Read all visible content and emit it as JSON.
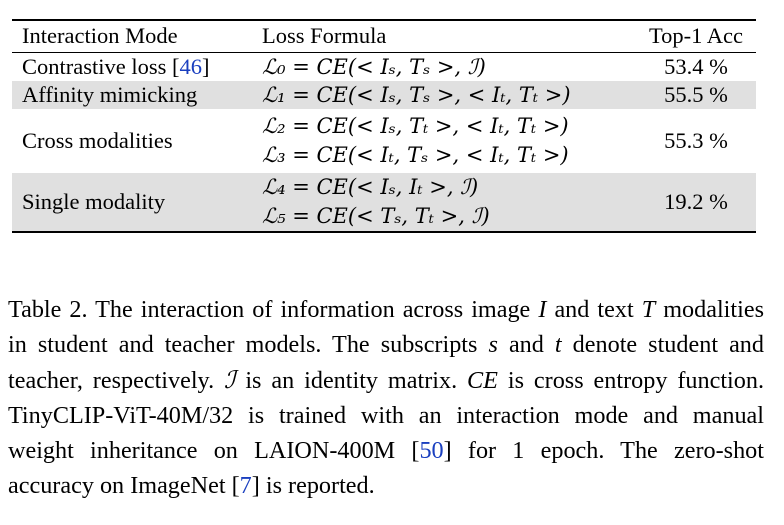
{
  "table": {
    "headers": {
      "mode": "Interaction Mode",
      "formula": "Loss Formula",
      "acc": "Top-1 Acc"
    },
    "rows": [
      {
        "mode": "Contrastive loss",
        "mode_cite": "46",
        "formulas": [
          "ℒ₀ = CE(< Iₛ, Tₛ >, ℐ)"
        ],
        "acc": "53.4 %"
      },
      {
        "mode": "Affinity mimicking",
        "formulas": [
          "ℒ₁ = CE(< Iₛ, Tₛ >, < Iₜ, Tₜ >)"
        ],
        "acc": "55.5 %"
      },
      {
        "mode": "Cross modalities",
        "formulas": [
          "ℒ₂ = CE(< Iₛ, Tₜ >, < Iₜ, Tₜ >)",
          "ℒ₃ = CE(< Iₜ, Tₛ >, < Iₜ, Tₜ >)"
        ],
        "acc": "55.3 %"
      },
      {
        "mode": "Single modality",
        "formulas": [
          "ℒ₄ = CE(< Iₛ, Iₜ >, ℐ)",
          "ℒ₅ = CE(< Tₛ, Tₜ >, ℐ)"
        ],
        "acc": "19.2 %"
      }
    ]
  },
  "caption": {
    "p1": "Table 2. The interaction of information across image ",
    "I": "I",
    "p2": " and text ",
    "T": "T",
    "p3": " modalities in student and teacher models. The subscripts ",
    "s": "s",
    "p4": " and ",
    "t": "t",
    "p5": " denote student and teacher, respectively. ",
    "ident": "ℐ",
    "p6": " is an identity matrix. ",
    "CE": "CE",
    "p7": " is cross entropy function. TinyCLIP-ViT-40M/32 is trained with an interaction mode and manual weight inheritance on LAION-400M [",
    "cite50": "50",
    "p8": "] for 1 epoch. The zero-shot accuracy on ImageNet [",
    "cite7": "7",
    "p9": "] is reported."
  }
}
